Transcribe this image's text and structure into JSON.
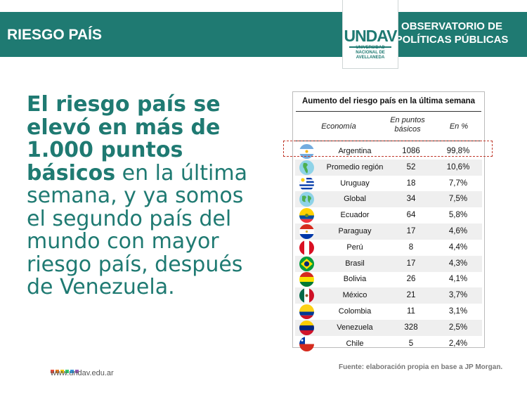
{
  "header": {
    "title": "RIESGO PAÍS",
    "right_line1": "OBSERVATORIO DE",
    "right_line2": "POLÍTICAS PÚBLICAS",
    "bar_color": "#1f7a72"
  },
  "logo": {
    "mark": "UNDAV",
    "sub_line1": "UNIVERSIDAD",
    "sub_line2": "NACIONAL DE",
    "sub_line3": "AVELLANEDA"
  },
  "headline": {
    "bold_part": "El riesgo país se elevó en más de 1.000 puntos básicos",
    "regular_part": " en la última semana, y ya somos el segundo país del mundo con mayor riesgo país, después de Venezuela."
  },
  "footer": {
    "url": "www.undav.edu.ar",
    "source": "Fuente: elaboración propia en base a JP Morgan.",
    "dot_colors": [
      "#e74c3c",
      "#e67e22",
      "#f1c40f",
      "#2ecc71",
      "#3498db",
      "#9b59b6"
    ]
  },
  "chart_data": {
    "type": "table",
    "title": "Aumento del riesgo país en la última semana",
    "columns": [
      "Economía",
      "En puntos básicos",
      "En %"
    ],
    "rows": [
      {
        "economy": "Argentina",
        "points": "1086",
        "pct": "99,8%",
        "flag": "argentina-flag-icon",
        "highlighted": true
      },
      {
        "economy": "Promedio región",
        "points": "52",
        "pct": "10,6%",
        "flag": "globe-americas-icon"
      },
      {
        "economy": "Uruguay",
        "points": "18",
        "pct": "7,7%",
        "flag": "uruguay-flag-icon"
      },
      {
        "economy": "Global",
        "points": "34",
        "pct": "7,5%",
        "flag": "globe-icon"
      },
      {
        "economy": "Ecuador",
        "points": "64",
        "pct": "5,8%",
        "flag": "ecuador-flag-icon"
      },
      {
        "economy": "Paraguay",
        "points": "17",
        "pct": "4,6%",
        "flag": "paraguay-flag-icon"
      },
      {
        "economy": "Perú",
        "points": "8",
        "pct": "4,4%",
        "flag": "peru-flag-icon"
      },
      {
        "economy": "Brasil",
        "points": "17",
        "pct": "4,3%",
        "flag": "brazil-flag-icon"
      },
      {
        "economy": "Bolivia",
        "points": "26",
        "pct": "4,1%",
        "flag": "bolivia-flag-icon"
      },
      {
        "economy": "México",
        "points": "21",
        "pct": "3,7%",
        "flag": "mexico-flag-icon"
      },
      {
        "economy": "Colombia",
        "points": "11",
        "pct": "3,1%",
        "flag": "colombia-flag-icon"
      },
      {
        "economy": "Venezuela",
        "points": "328",
        "pct": "2,5%",
        "flag": "venezuela-flag-icon"
      },
      {
        "economy": "Chile",
        "points": "5",
        "pct": "2,4%",
        "flag": "chile-flag-icon"
      }
    ]
  }
}
